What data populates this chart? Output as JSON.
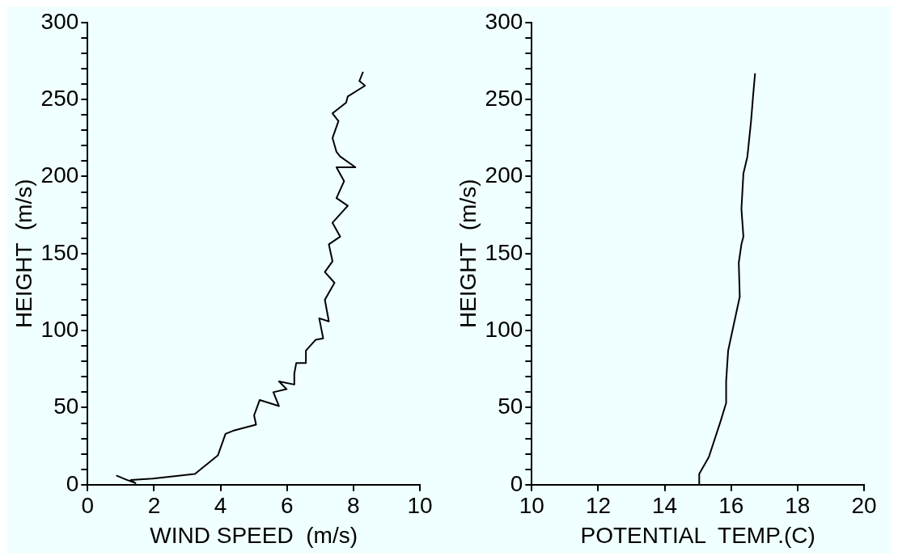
{
  "chart_data": [
    {
      "type": "line",
      "xlabel": "WIND SPEED  (m/s)",
      "ylabel": "HEIGHT  (m/s)",
      "marker": "none",
      "xlim": [
        0,
        10
      ],
      "xticks": [
        0,
        2,
        4,
        6,
        8,
        10
      ],
      "ylim": [
        0,
        300
      ],
      "yticks": [
        0,
        {
          "value": 10,
          "label": null
        },
        {
          "value": 20,
          "label": null
        },
        {
          "value": 30,
          "label": null
        },
        {
          "value": 40,
          "label": null
        },
        50,
        {
          "value": 60,
          "label": null
        },
        {
          "value": 70,
          "label": null
        },
        {
          "value": 80,
          "label": null
        },
        {
          "value": 90,
          "label": null
        },
        100,
        {
          "value": 110,
          "label": null
        },
        {
          "value": 120,
          "label": null
        },
        {
          "value": 130,
          "label": null
        },
        {
          "value": 140,
          "label": null
        },
        150,
        {
          "value": 160,
          "label": null
        },
        {
          "value": 170,
          "label": null
        },
        {
          "value": 180,
          "label": null
        },
        {
          "value": 190,
          "label": null
        },
        200,
        {
          "value": 210,
          "label": null
        },
        {
          "value": 220,
          "label": null
        },
        {
          "value": 230,
          "label": null
        },
        {
          "value": 240,
          "label": null
        },
        250,
        {
          "value": 260,
          "label": null
        },
        {
          "value": 270,
          "label": null
        },
        {
          "value": 280,
          "label": null
        },
        {
          "value": 290,
          "label": null
        },
        300
      ],
      "x": [
        0.86,
        1.15,
        1.44,
        1.3,
        1.96,
        3.23,
        3.92,
        4.15,
        4.38,
        5.07,
        5.01,
        5.18,
        5.76,
        5.59,
        5.99,
        5.76,
        6.22,
        6.22,
        6.28,
        6.57,
        6.57,
        6.86,
        7.09,
        6.97,
        7.26,
        7.14,
        7.43,
        7.14,
        7.37,
        7.26,
        7.6,
        7.37,
        7.83,
        7.49,
        7.72,
        7.49,
        8.06,
        7.6,
        7.49,
        7.37,
        7.55,
        7.37,
        7.78,
        7.83,
        8.35,
        8.18,
        8.29
      ],
      "series": [
        {
          "color": "#000000",
          "values": [
            6,
            3.4,
            1,
            3,
            4,
            7,
            19,
            33,
            35,
            39,
            45,
            55,
            51,
            60,
            62,
            67,
            65,
            72,
            79,
            79,
            87,
            94,
            95,
            108,
            106,
            120,
            131,
            138,
            145,
            156,
            161,
            170,
            181,
            186,
            197,
            206,
            206,
            213,
            216,
            225,
            236,
            241,
            248,
            252,
            259,
            262,
            268
          ]
        }
      ]
    },
    {
      "type": "line",
      "xlabel": "POTENTIAL  TEMP.(C)",
      "ylabel": "HEIGHT  (m/s)",
      "marker": "none",
      "xlim": [
        10,
        20
      ],
      "xticks": [
        10,
        12,
        14,
        16,
        18,
        20
      ],
      "ylim": [
        0,
        300
      ],
      "yticks": [
        0,
        {
          "value": 10,
          "label": null
        },
        {
          "value": 20,
          "label": null
        },
        {
          "value": 30,
          "label": null
        },
        {
          "value": 40,
          "label": null
        },
        50,
        {
          "value": 60,
          "label": null
        },
        {
          "value": 70,
          "label": null
        },
        {
          "value": 80,
          "label": null
        },
        {
          "value": 90,
          "label": null
        },
        100,
        {
          "value": 110,
          "label": null
        },
        {
          "value": 120,
          "label": null
        },
        {
          "value": 130,
          "label": null
        },
        {
          "value": 140,
          "label": null
        },
        150,
        {
          "value": 160,
          "label": null
        },
        {
          "value": 170,
          "label": null
        },
        {
          "value": 180,
          "label": null
        },
        {
          "value": 190,
          "label": null
        },
        200,
        {
          "value": 210,
          "label": null
        },
        {
          "value": 220,
          "label": null
        },
        {
          "value": 230,
          "label": null
        },
        {
          "value": 240,
          "label": null
        },
        250,
        {
          "value": 260,
          "label": null
        },
        {
          "value": 270,
          "label": null
        },
        {
          "value": 280,
          "label": null
        },
        {
          "value": 290,
          "label": null
        },
        300
      ],
      "x": [
        15.04,
        15.04,
        15.33,
        15.68,
        15.85,
        15.85,
        15.91,
        16.03,
        16.14,
        16.26,
        16.23,
        16.31,
        16.37,
        16.31,
        16.37,
        16.49,
        16.6,
        16.66,
        16.72
      ],
      "series": [
        {
          "color": "#000000",
          "values": [
            0,
            7,
            18,
            41,
            53,
            67,
            87,
            99,
            110,
            122,
            144,
            156,
            161,
            179,
            202,
            213,
            236,
            252,
            267
          ]
        }
      ]
    }
  ]
}
